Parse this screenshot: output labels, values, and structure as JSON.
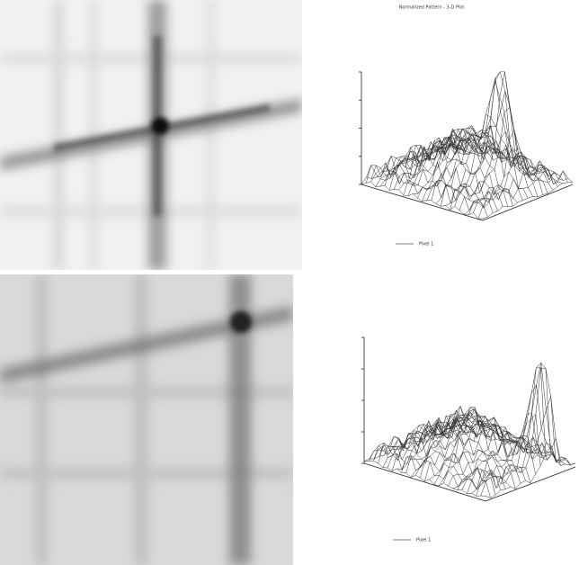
{
  "panels": [
    {
      "title": "Normalized Pattern - 3-D Plot",
      "legend": "Pixel 1"
    },
    {
      "legend": "Pixel 1"
    }
  ]
}
